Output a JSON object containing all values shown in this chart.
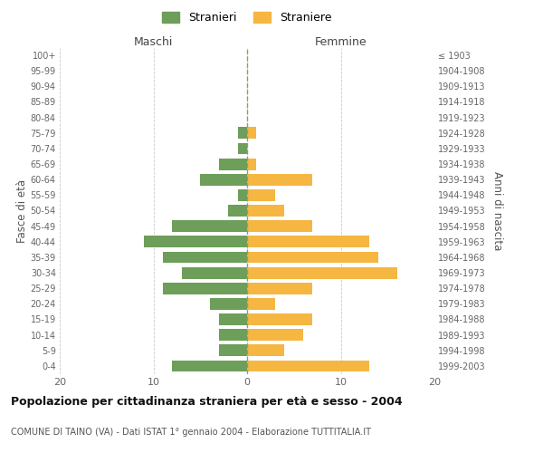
{
  "age_groups": [
    "0-4",
    "5-9",
    "10-14",
    "15-19",
    "20-24",
    "25-29",
    "30-34",
    "35-39",
    "40-44",
    "45-49",
    "50-54",
    "55-59",
    "60-64",
    "65-69",
    "70-74",
    "75-79",
    "80-84",
    "85-89",
    "90-94",
    "95-99",
    "100+"
  ],
  "birth_years": [
    "1999-2003",
    "1994-1998",
    "1989-1993",
    "1984-1988",
    "1979-1983",
    "1974-1978",
    "1969-1973",
    "1964-1968",
    "1959-1963",
    "1954-1958",
    "1949-1953",
    "1944-1948",
    "1939-1943",
    "1934-1938",
    "1929-1933",
    "1924-1928",
    "1919-1923",
    "1914-1918",
    "1909-1913",
    "1904-1908",
    "≤ 1903"
  ],
  "maschi": [
    8,
    3,
    3,
    3,
    4,
    9,
    7,
    9,
    11,
    8,
    2,
    1,
    5,
    3,
    1,
    1,
    0,
    0,
    0,
    0,
    0
  ],
  "femmine": [
    13,
    4,
    6,
    7,
    3,
    7,
    16,
    14,
    13,
    7,
    4,
    3,
    7,
    1,
    0,
    1,
    0,
    0,
    0,
    0,
    0
  ],
  "color_maschi": "#6d9e5a",
  "color_femmine": "#f5b642",
  "title": "Popolazione per cittadinanza straniera per età e sesso - 2004",
  "subtitle": "COMUNE DI TAINO (VA) - Dati ISTAT 1° gennaio 2004 - Elaborazione TUTTITALIA.IT",
  "ylabel_left": "Fasce di età",
  "ylabel_right": "Anni di nascita",
  "xlabel_left": "Maschi",
  "xlabel_right": "Femmine",
  "legend_maschi": "Stranieri",
  "legend_femmine": "Straniere",
  "xlim": 20,
  "background_color": "#ffffff",
  "grid_color": "#cccccc"
}
